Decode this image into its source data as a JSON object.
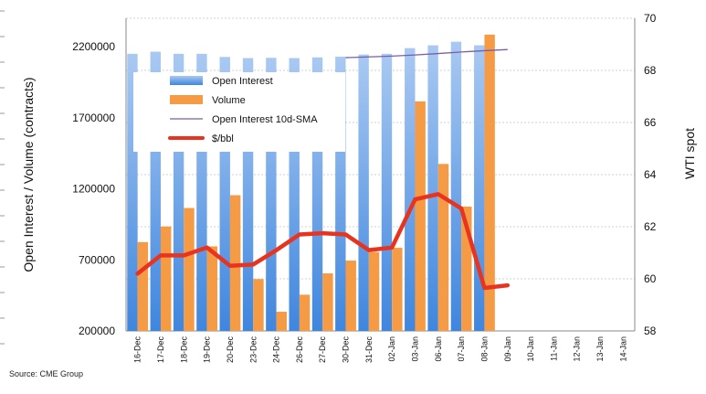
{
  "chart_data": {
    "type": "bar",
    "categories": [
      "16-Dec",
      "17-Dec",
      "18-Dec",
      "19-Dec",
      "20-Dec",
      "23-Dec",
      "24-Dec",
      "26-Dec",
      "27-Dec",
      "30-Dec",
      "31-Dec",
      "02-Jan",
      "03-Jan",
      "06-Jan",
      "07-Jan",
      "08-Jan",
      "09-Jan",
      "10-Jan",
      "11-Jan",
      "12-Jan",
      "13-Jan",
      "14-Jan"
    ],
    "series": [
      {
        "name": "Open Interest",
        "type": "bar",
        "axis": "left",
        "color": "#7eb0ec",
        "values": [
          2150000,
          2165000,
          2150000,
          2150000,
          2128000,
          2120000,
          2122000,
          2120000,
          2125000,
          2130000,
          2145000,
          2150000,
          2190000,
          2210000,
          2235000,
          2210000,
          null,
          null,
          null,
          null,
          null,
          null
        ]
      },
      {
        "name": "Volume",
        "type": "bar",
        "axis": "left",
        "color": "#f59b45",
        "values": [
          825000,
          935000,
          1065000,
          795000,
          1155000,
          565000,
          335000,
          455000,
          605000,
          695000,
          755000,
          785000,
          1815000,
          1375000,
          1075000,
          2285000,
          null,
          null,
          null,
          null,
          null,
          null
        ]
      },
      {
        "name": "Open Interest 10d-SMA",
        "type": "line",
        "axis": "left",
        "color": "#7a5ea7",
        "values": [
          null,
          null,
          null,
          null,
          null,
          null,
          null,
          null,
          null,
          2123000,
          2128000,
          2134000,
          2142000,
          2152000,
          2163000,
          2172000,
          2180000,
          null,
          null,
          null,
          null,
          null
        ]
      },
      {
        "name": "$/bbl",
        "type": "line",
        "axis": "right",
        "color": "#e8331f",
        "values": [
          60.2,
          60.9,
          60.9,
          61.2,
          60.5,
          60.55,
          61.1,
          61.7,
          61.75,
          61.7,
          61.1,
          61.2,
          63.05,
          63.25,
          62.7,
          59.65,
          59.75,
          null,
          null,
          null,
          null,
          null
        ]
      }
    ],
    "ylabel": "Open Interest / Volume (contracts)",
    "y2label": "WTI spot",
    "ylim": [
      200000,
      2400000
    ],
    "y2lim": [
      58,
      70
    ],
    "yticks": [
      "200000",
      "700000",
      "1200000",
      "1700000",
      "2200000"
    ],
    "y2ticks": [
      "58",
      "60",
      "62",
      "64",
      "66",
      "68",
      "70"
    ],
    "grid": true,
    "legend_position": "upper-left inside plot"
  },
  "source": "Source: CME Group"
}
